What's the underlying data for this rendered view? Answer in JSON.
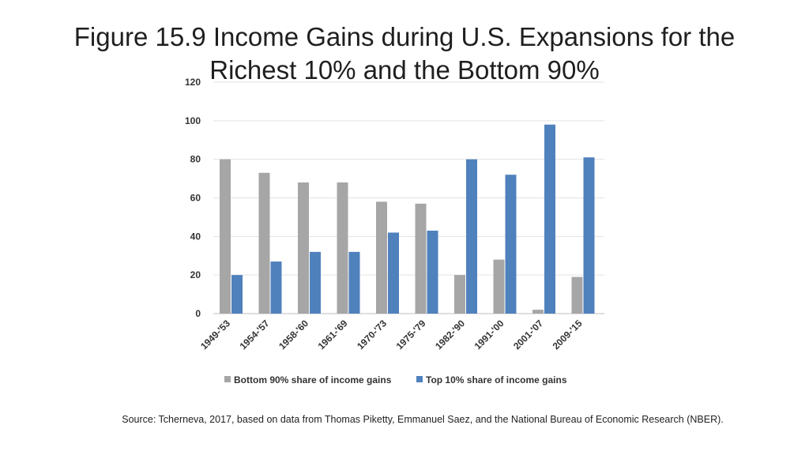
{
  "slide": {
    "title_line1": "Figure 15.9 Income Gains during U.S. Expansions for the",
    "title_line2": "Richest 10% and the Bottom 90%",
    "source": "Source: Tcherneva, 2017, based on data from Thomas Piketty, Emmanuel Saez, and the National Bureau of Economic Research (NBER)."
  },
  "chart_data": {
    "type": "bar",
    "categories": [
      "1949-'53",
      "1954-'57",
      "1958-'60",
      "1961-'69",
      "1970-'73",
      "1975-'79",
      "1982-'90",
      "1991-'00",
      "2001-'07",
      "2009-'15"
    ],
    "series": [
      {
        "name": "Bottom 90% share of income gains",
        "color": "#a6a6a6",
        "values": [
          80,
          73,
          68,
          68,
          58,
          57,
          20,
          28,
          2,
          19
        ]
      },
      {
        "name": "Top 10% share of income gains",
        "color": "#4f81bd",
        "values": [
          20,
          27,
          32,
          32,
          42,
          43,
          80,
          72,
          98,
          81
        ]
      }
    ],
    "yticks": [
      0,
      20,
      40,
      60,
      80,
      100,
      120
    ],
    "ylim": [
      0,
      120
    ],
    "grid": true,
    "legend_position": "bottom"
  }
}
